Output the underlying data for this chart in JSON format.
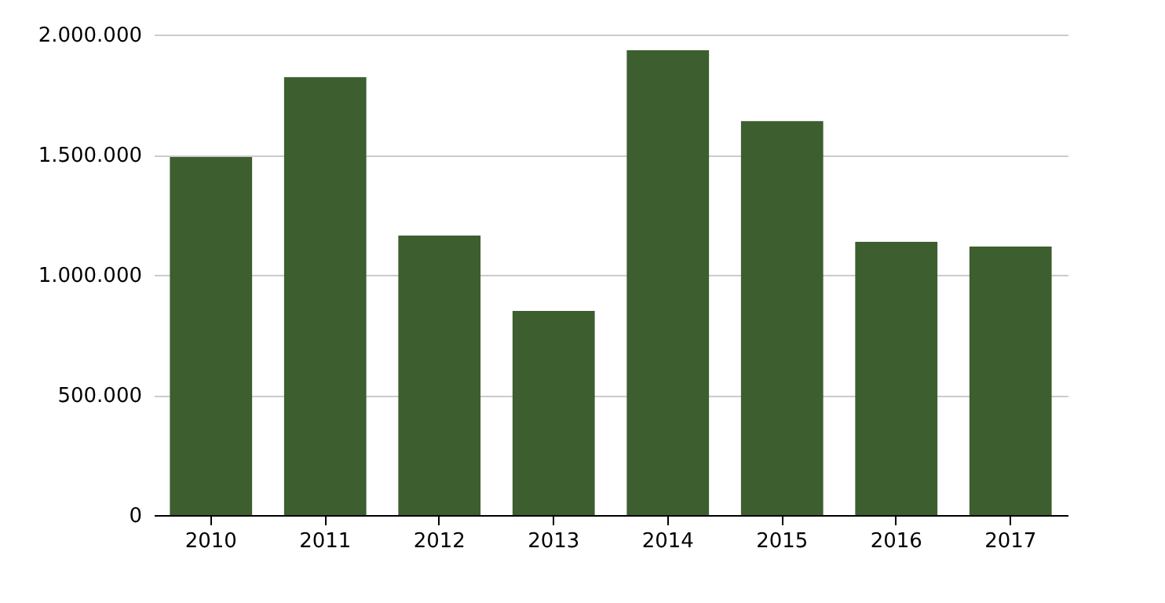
{
  "chart_data": {
    "type": "bar",
    "categories": [
      "2010",
      "2011",
      "2012",
      "2013",
      "2014",
      "2015",
      "2016",
      "2017"
    ],
    "values": [
      1490000,
      1823000,
      1163000,
      850000,
      1935000,
      1640000,
      1137000,
      1118000
    ],
    "color": "#3d5e2f",
    "ylim": [
      0,
      2000000
    ],
    "yticks": [
      {
        "value": 0,
        "label": "0"
      },
      {
        "value": 500000,
        "label": "500.000"
      },
      {
        "value": 1000000,
        "label": "1.000.000"
      },
      {
        "value": 1500000,
        "label": "1.500.000"
      },
      {
        "value": 2000000,
        "label": "2.000.000"
      }
    ],
    "grid": "y"
  }
}
